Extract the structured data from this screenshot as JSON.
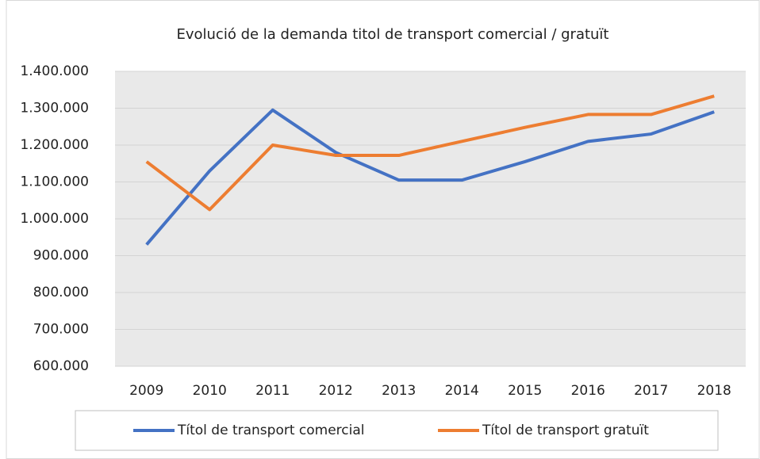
{
  "chart_data": {
    "type": "line",
    "title": "Evolució de la demanda titol de transport comercial / gratuït",
    "categories": [
      "2009",
      "2010",
      "2011",
      "2012",
      "2013",
      "2014",
      "2015",
      "2016",
      "2017",
      "2018"
    ],
    "series": [
      {
        "name": "Títol de transport comercial",
        "color": "#4472c4",
        "values": [
          930000,
          1130000,
          1295000,
          1180000,
          1105000,
          1105000,
          1155000,
          1210000,
          1230000,
          1290000
        ]
      },
      {
        "name": "Títol de transport gratuït",
        "color": "#ed7d31",
        "values": [
          1155000,
          1025000,
          1200000,
          1172000,
          1172000,
          1210000,
          1248000,
          1283000,
          1283000,
          1333000
        ]
      }
    ],
    "ylim": [
      600000,
      1400000
    ],
    "yticks": [
      {
        "value": 600000,
        "label": "600.000"
      },
      {
        "value": 700000,
        "label": "700.000"
      },
      {
        "value": 800000,
        "label": "800.000"
      },
      {
        "value": 900000,
        "label": "900.000"
      },
      {
        "value": 1000000,
        "label": "1.000.000"
      },
      {
        "value": 1100000,
        "label": "1.100.000"
      },
      {
        "value": 1200000,
        "label": "1.200.000"
      },
      {
        "value": 1300000,
        "label": "1.300.000"
      },
      {
        "value": 1400000,
        "label": "1.400.000"
      }
    ],
    "grid": true,
    "legend": "bottom"
  }
}
